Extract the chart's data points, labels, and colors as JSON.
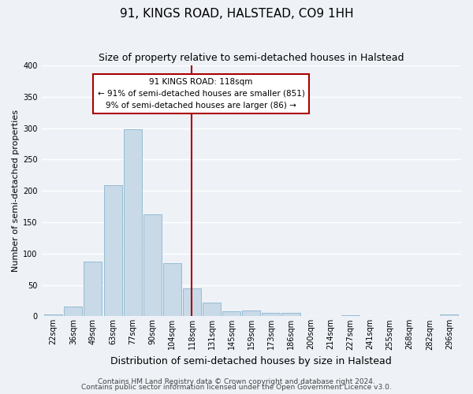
{
  "title": "91, KINGS ROAD, HALSTEAD, CO9 1HH",
  "subtitle": "Size of property relative to semi-detached houses in Halstead",
  "xlabel": "Distribution of semi-detached houses by size in Halstead",
  "ylabel": "Number of semi-detached properties",
  "bin_labels": [
    "22sqm",
    "36sqm",
    "49sqm",
    "63sqm",
    "77sqm",
    "90sqm",
    "104sqm",
    "118sqm",
    "131sqm",
    "145sqm",
    "159sqm",
    "173sqm",
    "186sqm",
    "200sqm",
    "214sqm",
    "227sqm",
    "241sqm",
    "255sqm",
    "268sqm",
    "282sqm",
    "296sqm"
  ],
  "bar_heights": [
    3,
    15,
    87,
    209,
    298,
    163,
    85,
    45,
    22,
    8,
    9,
    5,
    5,
    1,
    0,
    2,
    0,
    0,
    0,
    0,
    3
  ],
  "bar_color": "#c8d9e8",
  "bar_edge_color": "#8ab4cc",
  "property_line_color": "#aa0000",
  "annotation_title": "91 KINGS ROAD: 118sqm",
  "annotation_line1": "← 91% of semi-detached houses are smaller (851)",
  "annotation_line2": "9% of semi-detached houses are larger (86) →",
  "annotation_box_color": "#ffffff",
  "annotation_box_edge": "#aa0000",
  "ylim": [
    0,
    400
  ],
  "footer_line1": "Contains HM Land Registry data © Crown copyright and database right 2024.",
  "footer_line2": "Contains public sector information licensed under the Open Government Licence v3.0.",
  "background_color": "#eef2f7",
  "grid_color": "#ffffff",
  "title_fontsize": 11,
  "subtitle_fontsize": 9,
  "xlabel_fontsize": 9,
  "ylabel_fontsize": 8,
  "footer_fontsize": 6.5,
  "tick_fontsize": 7
}
